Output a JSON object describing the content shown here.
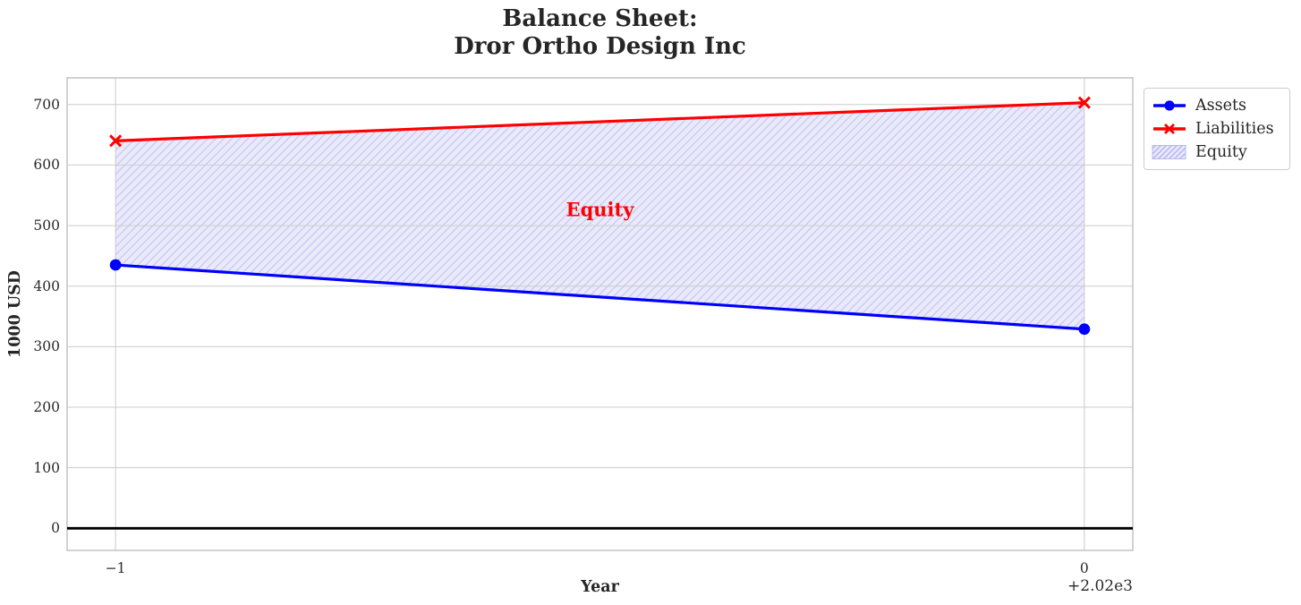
{
  "figure": {
    "title_line1": "Balance Sheet:",
    "title_line2": "Dror Ortho Design Inc"
  },
  "chart_data": {
    "type": "line",
    "title": "Balance Sheet:\nDror Ortho Design Inc",
    "xlabel": "Year",
    "ylabel": "1000 USD",
    "x_display": [
      -1,
      0
    ],
    "x_actual_years": [
      2019,
      2020
    ],
    "x_offset_text": "+2.02e3",
    "series": [
      {
        "name": "Assets",
        "color": "#0000ff",
        "marker": "circle",
        "values": [
          435,
          329
        ]
      },
      {
        "name": "Liabilities",
        "color": "#ff0000",
        "marker": "x",
        "values": [
          640,
          703
        ]
      }
    ],
    "fill_between": {
      "name": "Equity",
      "between": [
        "Liabilities",
        "Assets"
      ],
      "facecolor": "#e9e9fb",
      "hatch": "//",
      "hatch_color": "#c9c9f3",
      "edgecolor": "#b8b8ee"
    },
    "annotation": {
      "text": "Equity",
      "x": -0.5,
      "y": 527,
      "color": "#ff0000"
    },
    "xticks": [
      {
        "pos": -1,
        "label": "−1"
      },
      {
        "pos": 0,
        "label": "0"
      }
    ],
    "yticks": [
      0,
      100,
      200,
      300,
      400,
      500,
      600,
      700
    ],
    "xlim": [
      -1.05,
      0.05
    ],
    "ylim": [
      -36.5,
      744
    ],
    "grid": true,
    "grid_color": "#cccccc",
    "axes_edge_color": "#c6c6c6",
    "zero_line": {
      "y": 0,
      "color": "#000000"
    },
    "legend": {
      "position": "upper-right-outside",
      "entries": [
        {
          "label": "Assets",
          "type": "line",
          "color": "#0000ff",
          "marker": "circle"
        },
        {
          "label": "Liabilities",
          "type": "line",
          "color": "#ff0000",
          "marker": "x"
        },
        {
          "label": "Equity",
          "type": "patch",
          "facecolor": "#e9e9fb",
          "hatch_color": "#b3b3ec",
          "edgecolor": "#b8b8ee"
        }
      ]
    }
  }
}
